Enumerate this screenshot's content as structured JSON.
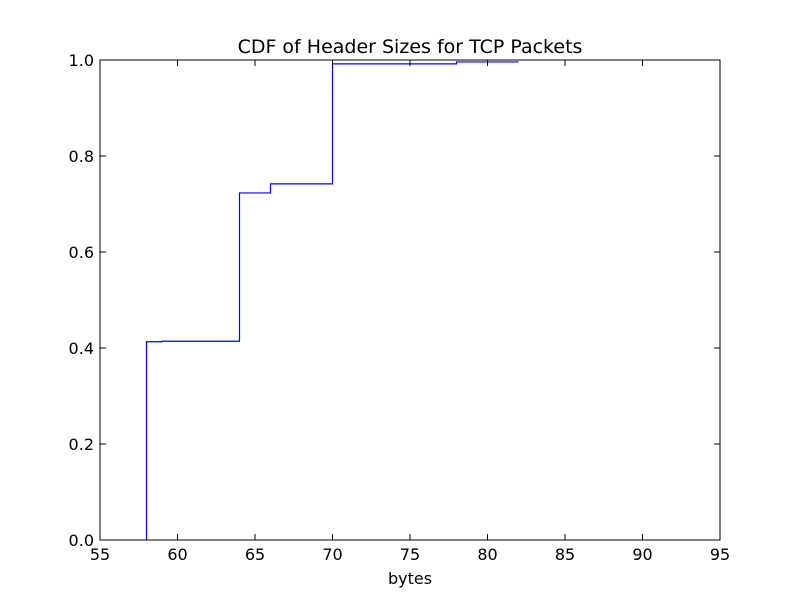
{
  "chart_data": {
    "type": "line",
    "subtype": "step-cdf",
    "title": "CDF of Header Sizes for TCP Packets",
    "xlabel": "bytes",
    "ylabel": "",
    "xlim": [
      55,
      95
    ],
    "ylim": [
      0.0,
      1.0
    ],
    "x_ticks": [
      "55",
      "60",
      "65",
      "70",
      "75",
      "80",
      "85",
      "90",
      "95"
    ],
    "y_ticks": [
      "0.0",
      "0.2",
      "0.4",
      "0.6",
      "0.8",
      "1.0"
    ],
    "grid": false,
    "legend": "none",
    "series": [
      {
        "color": "#0000ff",
        "points": [
          {
            "x": 58,
            "y": 0.0
          },
          {
            "x": 58,
            "y": 0.413
          },
          {
            "x": 59,
            "y": 0.413
          },
          {
            "x": 59,
            "y": 0.414
          },
          {
            "x": 64,
            "y": 0.414
          },
          {
            "x": 64,
            "y": 0.723
          },
          {
            "x": 66,
            "y": 0.723
          },
          {
            "x": 66,
            "y": 0.742
          },
          {
            "x": 70,
            "y": 0.742
          },
          {
            "x": 70,
            "y": 0.992
          },
          {
            "x": 78,
            "y": 0.992
          },
          {
            "x": 78,
            "y": 0.996
          },
          {
            "x": 82,
            "y": 0.996
          }
        ]
      }
    ]
  }
}
